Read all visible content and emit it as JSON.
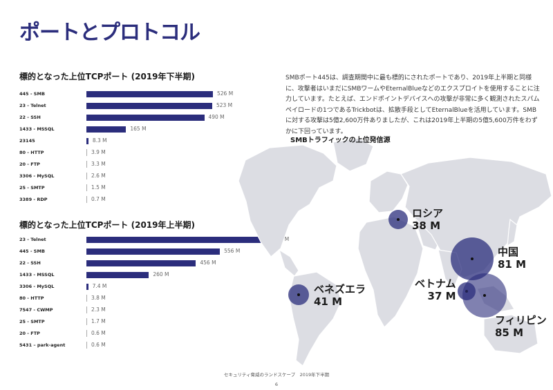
{
  "page": {
    "title": "ポートとプロトコル",
    "paragraph": "SMBポート445は、調査期間中に最も標的にされたポートであり、2019年上半期と同様に、攻撃者はいまだにSMBワームやEternalBlueなどのエクスプロイトを使用することに注力しています。たとえば、エンドポイントデバイスへの攻撃が非常に多く観測されたスパムペイロードの1つであるTrickbotは、拡散手段としてEternalBlueを活用しています。SMBに対する攻撃は5億2,600万件ありましたが、これは2019年上半期の5億5,600万件をわずかに下回っています。",
    "footer": "セキュリティ脅威のランドスケープ　2019年下半期",
    "page_number": "6"
  },
  "chart_data": [
    {
      "type": "bar",
      "title": "標的となった上位TCPポート (2019年下半期)",
      "categories": [
        "445 - SMB",
        "23 - Telnet",
        "22 - SSH",
        "1433 - MSSQL",
        "23145",
        "80 - HTTP",
        "20 - FTP",
        "3306 - MySQL",
        "25 - SMTP",
        "3389 - RDP"
      ],
      "values": [
        526,
        523,
        490,
        165,
        8.3,
        3.9,
        3.3,
        2.6,
        1.5,
        0.7
      ],
      "value_labels": [
        "526 M",
        "523 M",
        "490 M",
        "165 M",
        "8.3 M",
        "3.9 M",
        "3.3 M",
        "2.6 M",
        "1.5 M",
        "0.7 M"
      ],
      "unit": "M",
      "color": "#2b2d7c"
    },
    {
      "type": "bar",
      "title": "標的となった上位TCPポート (2019年上半期)",
      "categories": [
        "23 - Telnet",
        "445 - SMB",
        "22 - SSH",
        "1433 - MSSQL",
        "3306 - MySQL",
        "80 - HTTP",
        "7547 - CWMP",
        "25 - SMTP",
        "20 - FTP",
        "5431 – park-agent"
      ],
      "values": [
        760,
        556,
        456,
        260,
        7.4,
        3.8,
        2.3,
        1.7,
        0.6,
        0.6
      ],
      "value_labels": [
        "760 M",
        "556 M",
        "456 M",
        "260 M",
        "7.4 M",
        "3.8 M",
        "2.3 M",
        "1.7 M",
        "0.6 M",
        "0.6 M"
      ],
      "unit": "M",
      "color": "#2b2d7c"
    }
  ],
  "map": {
    "title": "SMBトラフィックの上位発信源",
    "bubble_color": "#2b2d7c",
    "bubbles": [
      {
        "country": "ロシア",
        "value": "38 M",
        "amount": 38
      },
      {
        "country": "中国",
        "value": "81 M",
        "amount": 81
      },
      {
        "country": "ベトナム",
        "value": "37 M",
        "amount": 37
      },
      {
        "country": "ベネズエラ",
        "value": "41 M",
        "amount": 41
      },
      {
        "country": "フィリピン",
        "value": "85 M",
        "amount": 85
      }
    ]
  }
}
